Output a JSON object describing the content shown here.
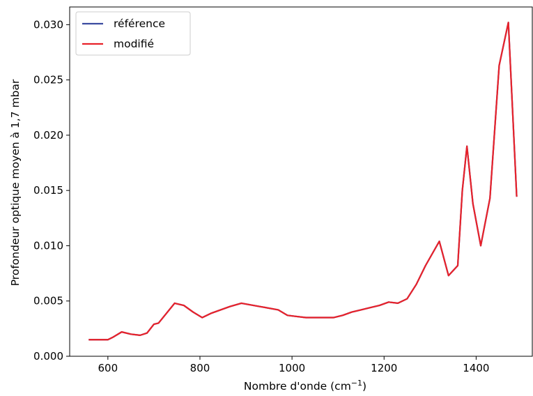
{
  "chart_data": {
    "type": "line",
    "xlabel": "Nombre d'onde (cm",
    "xlabel_sup": "−1",
    "xlabel_close": ")",
    "ylabel": "Profondeur optique moyen à 1,7 mbar",
    "xlim": [
      517,
      1522
    ],
    "ylim": [
      0,
      0.0316
    ],
    "x_ticks": [
      600,
      800,
      1000,
      1200,
      1400
    ],
    "x_tick_labels": [
      "600",
      "800",
      "1000",
      "1200",
      "1400"
    ],
    "y_ticks": [
      0,
      0.005,
      0.01,
      0.015,
      0.02,
      0.025,
      0.03
    ],
    "y_tick_labels": [
      "0.000",
      "0.005",
      "0.010",
      "0.015",
      "0.020",
      "0.025",
      "0.030"
    ],
    "legend_position": "top-left",
    "series": [
      {
        "name": "référence",
        "color": "#3b4ba0",
        "x": [
          560,
          580,
          600,
          610,
          630,
          650,
          670,
          685,
          700,
          710,
          745,
          765,
          785,
          805,
          825,
          845,
          865,
          890,
          930,
          970,
          990,
          1010,
          1030,
          1050,
          1070,
          1090,
          1110,
          1130,
          1150,
          1170,
          1190,
          1210,
          1230,
          1250,
          1270,
          1290,
          1320,
          1340,
          1360,
          1370,
          1380,
          1393,
          1410,
          1430,
          1450,
          1470,
          1488
        ],
        "y": [
          0.0015,
          0.0015,
          0.0015,
          0.0017,
          0.0022,
          0.002,
          0.0019,
          0.0021,
          0.0029,
          0.003,
          0.0048,
          0.0046,
          0.004,
          0.0035,
          0.0039,
          0.0042,
          0.0045,
          0.0048,
          0.0045,
          0.0042,
          0.0037,
          0.0036,
          0.0035,
          0.0035,
          0.0035,
          0.0035,
          0.0037,
          0.004,
          0.0042,
          0.0044,
          0.0046,
          0.0049,
          0.0048,
          0.0052,
          0.0065,
          0.0082,
          0.0104,
          0.0073,
          0.0082,
          0.015,
          0.019,
          0.0138,
          0.01,
          0.0143,
          0.0263,
          0.0302,
          0.0145
        ]
      },
      {
        "name": "modifié",
        "color": "#e8222a",
        "x": [
          560,
          580,
          600,
          610,
          630,
          650,
          670,
          685,
          700,
          710,
          745,
          765,
          785,
          805,
          825,
          845,
          865,
          890,
          930,
          970,
          990,
          1010,
          1030,
          1050,
          1070,
          1090,
          1110,
          1130,
          1150,
          1170,
          1190,
          1210,
          1230,
          1250,
          1270,
          1290,
          1320,
          1340,
          1360,
          1370,
          1380,
          1393,
          1410,
          1430,
          1450,
          1470,
          1488
        ],
        "y": [
          0.0015,
          0.0015,
          0.0015,
          0.0017,
          0.0022,
          0.002,
          0.0019,
          0.0021,
          0.0029,
          0.003,
          0.0048,
          0.0046,
          0.004,
          0.0035,
          0.0039,
          0.0042,
          0.0045,
          0.0048,
          0.0045,
          0.0042,
          0.0037,
          0.0036,
          0.0035,
          0.0035,
          0.0035,
          0.0035,
          0.0037,
          0.004,
          0.0042,
          0.0044,
          0.0046,
          0.0049,
          0.0048,
          0.0052,
          0.0065,
          0.0082,
          0.0104,
          0.0073,
          0.0082,
          0.015,
          0.019,
          0.0138,
          0.01,
          0.0143,
          0.0263,
          0.0302,
          0.0145
        ]
      }
    ]
  }
}
